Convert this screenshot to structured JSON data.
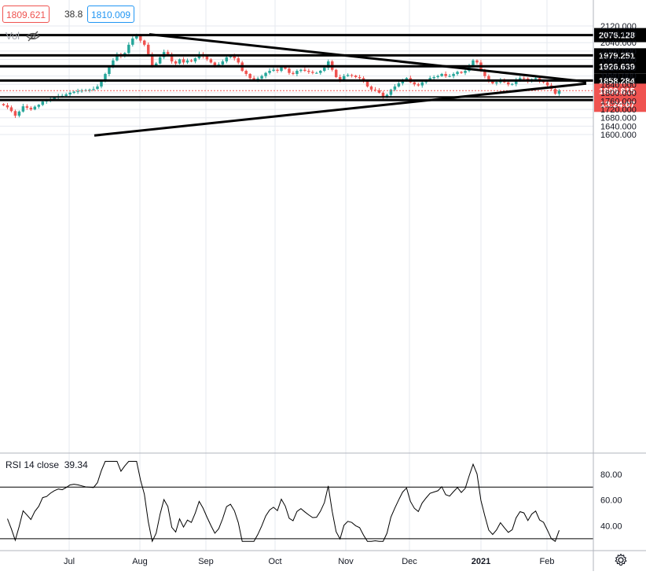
{
  "header": {
    "bid": "1809.621",
    "spread": "38.8",
    "ask": "1810.009",
    "vol_label": "Vol",
    "vol_icon": "eye-hidden-icon"
  },
  "rsi_panel": {
    "label": "RSI 14 close",
    "value": "39.34",
    "ticks": [
      "80.00",
      "60.00",
      "40.00"
    ],
    "upper_band": 70,
    "lower_band": 30,
    "current_value": 39.34
  },
  "time_axis": {
    "labels": [
      "Jul",
      "Aug",
      "Sep",
      "Oct",
      "Nov",
      "Dec",
      "2021",
      "Feb"
    ]
  },
  "price_axis": {
    "ticks": [
      "2120.000",
      "2080.000",
      "2040.000",
      "2000.000",
      "1960.000",
      "1920.000",
      "1880.000",
      "1840.000",
      "1800.000",
      "1760.000",
      "1720.000",
      "1680.000",
      "1640.000",
      "1600.000"
    ],
    "current_price": "1809.815",
    "countdown": "13:24:07"
  },
  "colors": {
    "up": "#26a69a",
    "down": "#ef5350",
    "lines": "#000000",
    "axis_text": "#131722",
    "grid": "#e6e9ef"
  },
  "chart_data": {
    "type": "candlestick",
    "ylim": [
      1590,
      2135
    ],
    "grid": true,
    "horizontal_levels": [
      2076.128,
      1979.251,
      1926.639,
      1858.284,
      1764.985
    ],
    "level_labels": [
      "2076.128",
      "1979.251",
      "1926.639",
      "1858.284",
      "1764.985"
    ],
    "trendlines": [
      {
        "from": [
          "Aug 06",
          2080
        ],
        "to": [
          "Feb 10",
          1853
        ]
      },
      {
        "from": [
          "Jul 12",
          1595
        ],
        "to": [
          "Feb 10",
          1844
        ]
      }
    ],
    "current_price_line": 1809.815,
    "close_series": [
      1740,
      1730,
      1712,
      1690,
      1710,
      1735,
      1728,
      1720,
      1733,
      1742,
      1758,
      1762,
      1770,
      1777,
      1783,
      1785,
      1792,
      1800,
      1805,
      1808,
      1810,
      1812,
      1815,
      1818,
      1830,
      1855,
      1890,
      1925,
      1955,
      1985,
      1975,
      1990,
      2030,
      2060,
      2075,
      2050,
      2030,
      1985,
      1930,
      1940,
      1970,
      1995,
      1985,
      1950,
      1940,
      1960,
      1945,
      1955,
      1950,
      1965,
      1985,
      1975,
      1960,
      1945,
      1930,
      1935,
      1950,
      1970,
      1975,
      1965,
      1945,
      1905,
      1890,
      1870,
      1860,
      1868,
      1880,
      1895,
      1905,
      1910,
      1905,
      1925,
      1915,
      1895,
      1890,
      1905,
      1910,
      1905,
      1900,
      1895,
      1895,
      1905,
      1920,
      1950,
      1910,
      1875,
      1860,
      1880,
      1885,
      1882,
      1875,
      1870,
      1855,
      1830,
      1815,
      1812,
      1800,
      1780,
      1790,
      1815,
      1830,
      1845,
      1860,
      1870,
      1850,
      1840,
      1835,
      1850,
      1860,
      1870,
      1875,
      1880,
      1890,
      1880,
      1880,
      1890,
      1900,
      1895,
      1905,
      1930,
      1955,
      1945,
      1905,
      1880,
      1855,
      1845,
      1850,
      1860,
      1850,
      1840,
      1842,
      1860,
      1870,
      1868,
      1855,
      1865,
      1870,
      1855,
      1850,
      1835,
      1818,
      1795,
      1810
    ]
  }
}
